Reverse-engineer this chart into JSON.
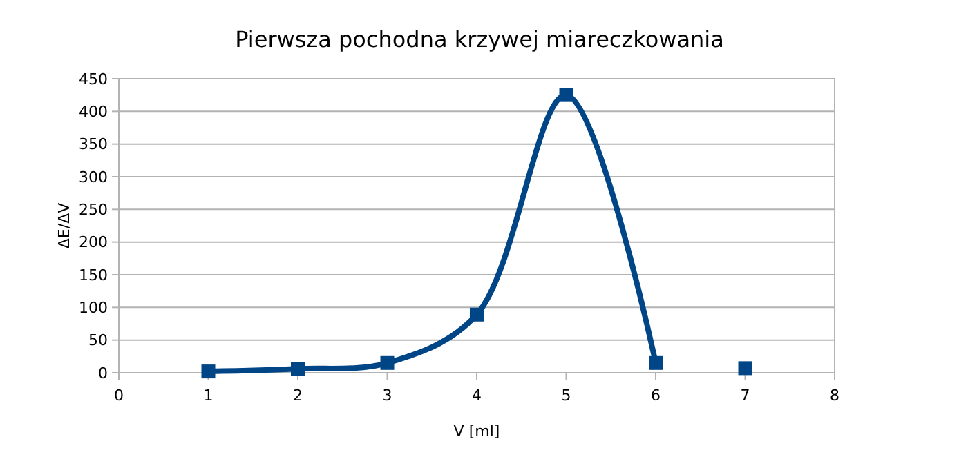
{
  "chart_data": {
    "type": "line",
    "title": "Pierwsza pochodna krzywej miareczkowania",
    "xlabel": "V [ml]",
    "ylabel": "ΔE/ΔV",
    "series": [
      {
        "color": "#004586",
        "x": [
          1,
          2,
          3,
          4,
          5,
          6
        ],
        "values": [
          2,
          6,
          15,
          89,
          425,
          15
        ]
      },
      {
        "type": "scatter",
        "color": "#004586",
        "x": [
          7
        ],
        "values": [
          7
        ]
      }
    ],
    "xlim": [
      0,
      8
    ],
    "xticks": [
      0,
      1,
      2,
      3,
      4,
      5,
      6,
      7,
      8
    ],
    "ylim": [
      0,
      450
    ],
    "yticks": [
      0,
      50,
      100,
      150,
      200,
      250,
      300,
      350,
      400,
      450
    ],
    "grid": "y",
    "marker": "square",
    "line_style": "solid"
  }
}
